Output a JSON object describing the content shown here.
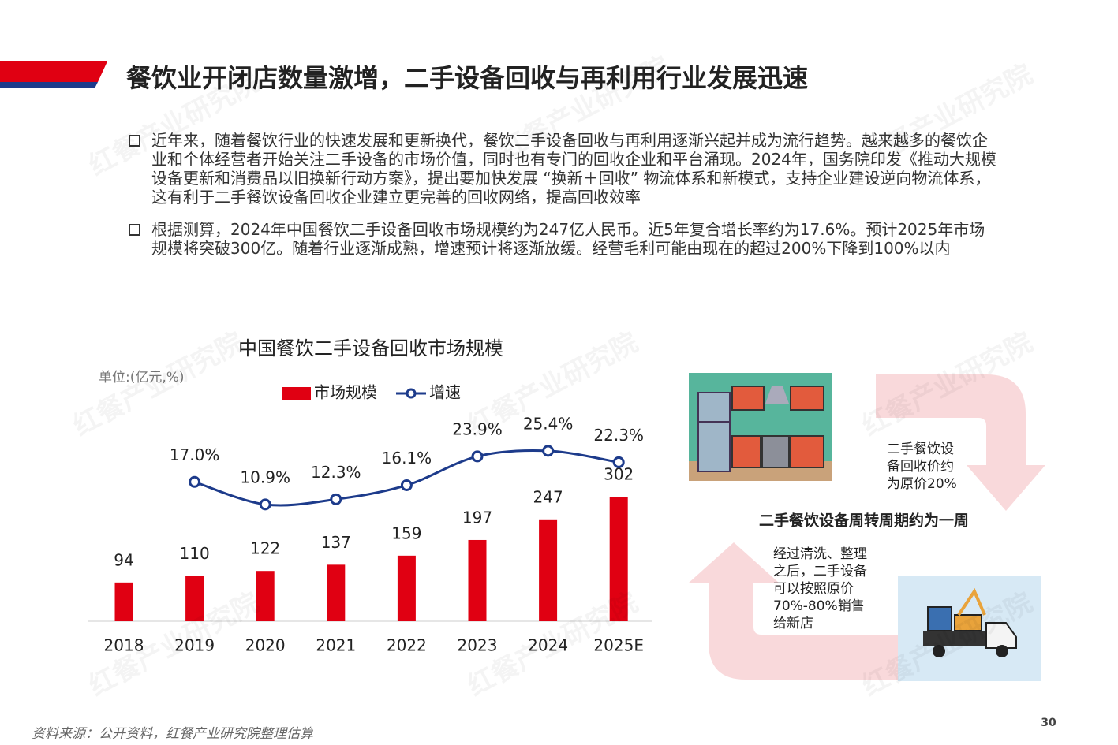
{
  "header": {
    "title": "餐饮业开闭店数量激增，二手设备回收与再利用行业发展迅速"
  },
  "bullets": [
    "近年来，随着餐饮行业的快速发展和更新换代，餐饮二手设备回收与再利用逐渐兴起并成为流行趋势。越来越多的餐饮企业和个体经营者开始关注二手设备的市场价值，同时也有专门的回收企业和平台涌现。2024年，国务院印发《推动大规模设备更新和消费品以旧换新行动方案》，提出要加快发展 “换新＋回收” 物流体系和新模式，支持企业建设逆向物流体系，这有利于二手餐饮设备回收企业建立更完善的回收网络，提高回收效率",
    "根据测算，2024年中国餐饮二手设备回收市场规模约为247亿人民币。近5年复合增长率约为17.6%。预计2025年市场规模将突破300亿。随着行业逐渐成熟，增速预计将逐渐放缓。经营毛利可能由现在的超过200%下降到100%以内"
  ],
  "chart_data": {
    "type": "bar",
    "title": "中国餐饮二手设备回收市场规模",
    "unit": "单位:(亿元,%)",
    "categories": [
      "2018",
      "2019",
      "2020",
      "2021",
      "2022",
      "2023",
      "2024",
      "2025E"
    ],
    "series": [
      {
        "name": "市场规模",
        "type": "bar",
        "color": "#e00012",
        "values": [
          94,
          110,
          122,
          137,
          159,
          197,
          247,
          302
        ]
      },
      {
        "name": "增速",
        "type": "line",
        "axis": "y2",
        "color": "#1d3b8b",
        "values": [
          null,
          17.0,
          10.9,
          12.3,
          16.1,
          23.9,
          25.4,
          22.3
        ],
        "value_labels": [
          null,
          "17.0%",
          "10.9%",
          "12.3%",
          "16.1%",
          "23.9%",
          "25.4%",
          "22.3%"
        ]
      }
    ]
  },
  "diagram": {
    "price_note": "二手餐饮设备回收价约为原价20%",
    "cycle": "二手餐饮设备周转周期约为一周",
    "resale_note": "经过清洗、整理之后，二手设备可以按照原价70%-80%销售给新店"
  },
  "watermark": "红餐产业研究院",
  "source": "资料来源：公开资料，红餐产业研究院整理估算",
  "page_number": "30"
}
